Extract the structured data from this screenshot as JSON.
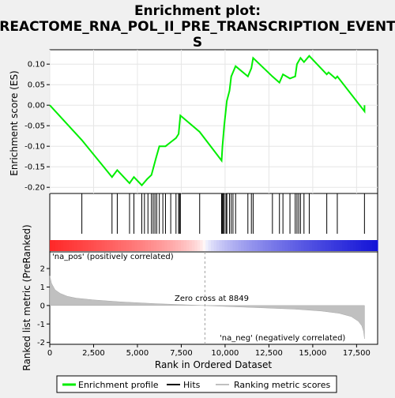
{
  "title_lines": [
    "Enrichment plot:",
    "REACTOME_RNA_POL_II_PRE_TRANSCRIPTION_EVENT",
    "S"
  ],
  "colors": {
    "profile": "#00ee00",
    "hits": "#000000",
    "metric_fill": "#c0c0c0",
    "zero_line": "#a0a0a0",
    "pos_label": "#cc0000",
    "neg_label": "#0000cc"
  },
  "chart_data": [
    {
      "type": "line",
      "panel": "enrichment",
      "ylabel": "Enrichment score (ES)",
      "xlim": [
        0,
        18700
      ],
      "ylim": [
        -0.215,
        0.135
      ],
      "yticks": [
        -0.2,
        -0.15,
        -0.1,
        -0.05,
        0.0,
        0.05,
        0.1
      ],
      "ytick_labels": [
        "-0.20",
        "-0.15",
        "-0.10",
        "-0.05",
        "0.00",
        "0.05",
        "0.10"
      ],
      "series": [
        {
          "x": [
            0,
            1830,
            3550,
            3850,
            4550,
            4800,
            5250,
            5550,
            5800,
            6050,
            6250,
            6600,
            6900,
            7200,
            7350,
            7450,
            8550,
            9800,
            9850,
            9950,
            10100,
            10250,
            10350,
            10450,
            10600,
            11300,
            11500,
            11600,
            12700,
            13100,
            13300,
            13700,
            14000,
            14100,
            14300,
            14500,
            14800,
            15800,
            15900,
            16300,
            16400,
            17950,
            17950
          ],
          "y": [
            0.0,
            -0.085,
            -0.175,
            -0.158,
            -0.19,
            -0.175,
            -0.195,
            -0.18,
            -0.17,
            -0.13,
            -0.1,
            -0.1,
            -0.09,
            -0.08,
            -0.07,
            -0.025,
            -0.065,
            -0.135,
            -0.1,
            -0.05,
            0.01,
            0.035,
            0.07,
            0.08,
            0.095,
            0.07,
            0.09,
            0.115,
            0.07,
            0.055,
            0.075,
            0.065,
            0.07,
            0.1,
            0.115,
            0.105,
            0.12,
            0.075,
            0.08,
            0.065,
            0.07,
            -0.015,
            0.0
          ]
        }
      ],
      "legend_label": "Enrichment profile"
    },
    {
      "type": "scatter",
      "panel": "hits",
      "x": [
        1830,
        3550,
        3850,
        4550,
        4800,
        5250,
        5400,
        5600,
        5800,
        5900,
        6000,
        6100,
        6250,
        6450,
        6600,
        6900,
        7200,
        7350,
        7400,
        7450,
        8550,
        9800,
        9850,
        9900,
        9950,
        10050,
        10100,
        10250,
        10350,
        10450,
        10600,
        11300,
        11500,
        11600,
        12700,
        13100,
        13300,
        13700,
        14000,
        14100,
        14200,
        14300,
        14500,
        14800,
        15800,
        16400,
        17950
      ],
      "legend_label": "Hits"
    },
    {
      "type": "area",
      "panel": "ranked_metric",
      "ylabel": "Ranked list metric (PreRanked)",
      "xlabel": "Rank in Ordered Dataset",
      "xlim": [
        0,
        18700
      ],
      "ylim": [
        -2.1,
        2.9
      ],
      "xticks": [
        0,
        2500,
        5000,
        7500,
        10000,
        12500,
        15000,
        17500
      ],
      "xtick_labels": [
        "0",
        "2,500",
        "5,000",
        "7,500",
        "10,000",
        "12,500",
        "15,000",
        "17,500"
      ],
      "yticks": [
        -2,
        -1,
        0,
        1,
        2
      ],
      "ytick_labels": [
        "-2",
        "-1",
        "0",
        "1",
        "2"
      ],
      "x": [
        0,
        100,
        300,
        600,
        1000,
        1500,
        2500,
        4000,
        6000,
        8000,
        8849,
        10000,
        12000,
        14000,
        15500,
        16500,
        17200,
        17600,
        17800,
        17900,
        17950
      ],
      "y": [
        1.6,
        1.2,
        0.85,
        0.65,
        0.5,
        0.4,
        0.3,
        0.2,
        0.1,
        0.03,
        0.0,
        -0.05,
        -0.12,
        -0.2,
        -0.3,
        -0.42,
        -0.6,
        -0.85,
        -1.1,
        -1.4,
        -1.8
      ],
      "zero_cross": 8849,
      "zero_cross_label": "Zero cross at 8849",
      "pos_label": "'na_pos' (positively correlated)",
      "neg_label": "'na_neg' (negatively correlated)",
      "legend_label": "Ranking metric scores"
    }
  ]
}
